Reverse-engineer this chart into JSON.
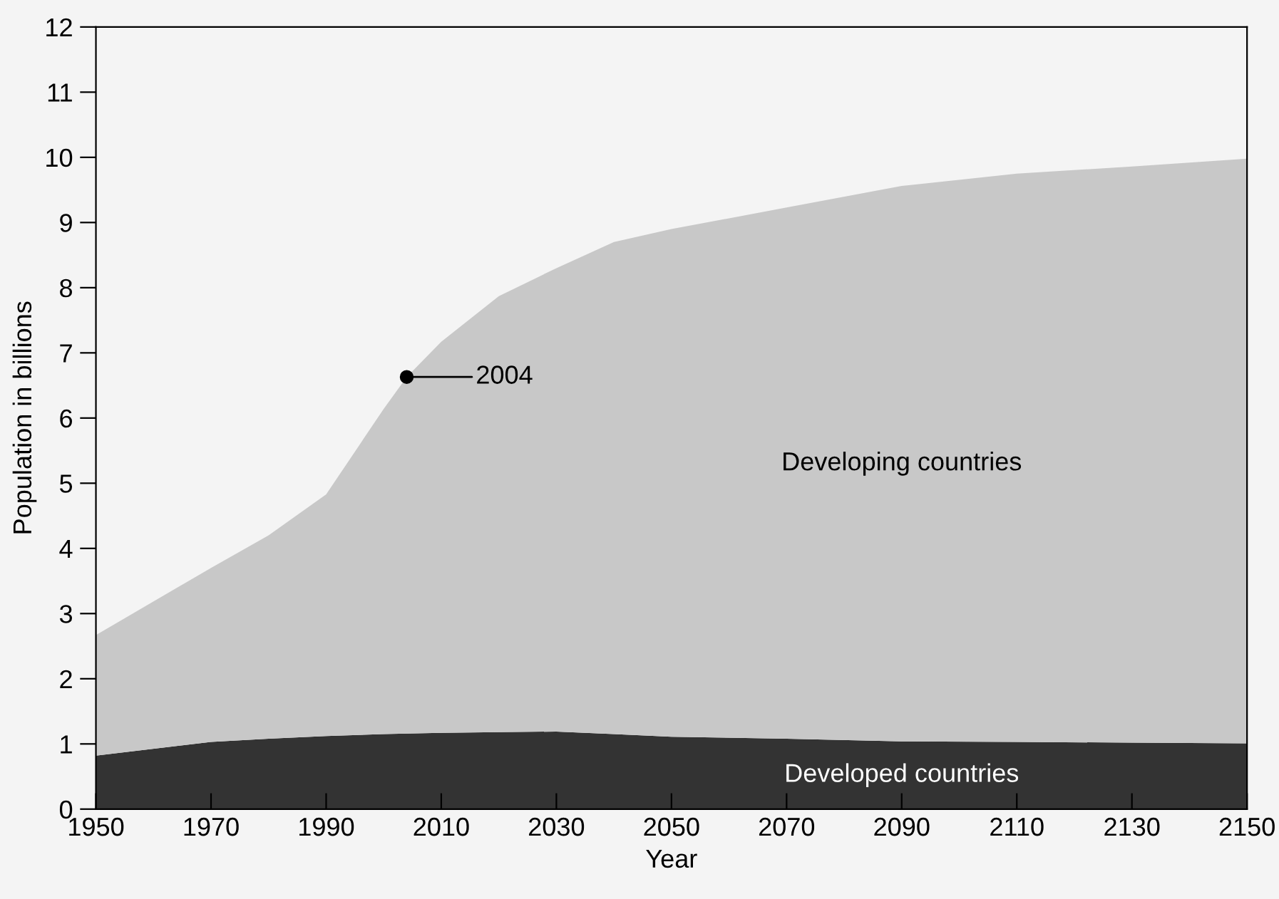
{
  "chart_data": {
    "type": "area",
    "stacked": true,
    "xlabel": "Year",
    "ylabel": "Population in billions",
    "x": [
      1950,
      1970,
      1980,
      1990,
      2000,
      2004,
      2010,
      2020,
      2030,
      2040,
      2050,
      2070,
      2090,
      2110,
      2130,
      2150
    ],
    "series": [
      {
        "name": "Developed countries",
        "color": "#333333",
        "values": [
          0.82,
          1.03,
          1.08,
          1.12,
          1.15,
          1.16,
          1.17,
          1.18,
          1.19,
          1.15,
          1.11,
          1.08,
          1.04,
          1.03,
          1.02,
          1.01
        ]
      },
      {
        "name": "Developing countries",
        "color": "#c8c8c8",
        "values": [
          1.85,
          2.67,
          3.12,
          3.71,
          4.99,
          5.47,
          6.0,
          6.69,
          7.11,
          7.55,
          7.79,
          8.15,
          8.52,
          8.72,
          8.84,
          8.97
        ]
      }
    ],
    "annotations": [
      {
        "text": "2004",
        "x": 2004,
        "y": 6.63
      }
    ],
    "xlim": [
      1950,
      2150
    ],
    "xticks": [
      1950,
      1970,
      1990,
      2010,
      2030,
      2050,
      2070,
      2090,
      2110,
      2130,
      2150
    ],
    "ylim": [
      0,
      12
    ],
    "yticks": [
      0,
      1,
      2,
      3,
      4,
      5,
      6,
      7,
      8,
      9,
      10,
      11,
      12
    ],
    "grid": false,
    "legend": false
  }
}
